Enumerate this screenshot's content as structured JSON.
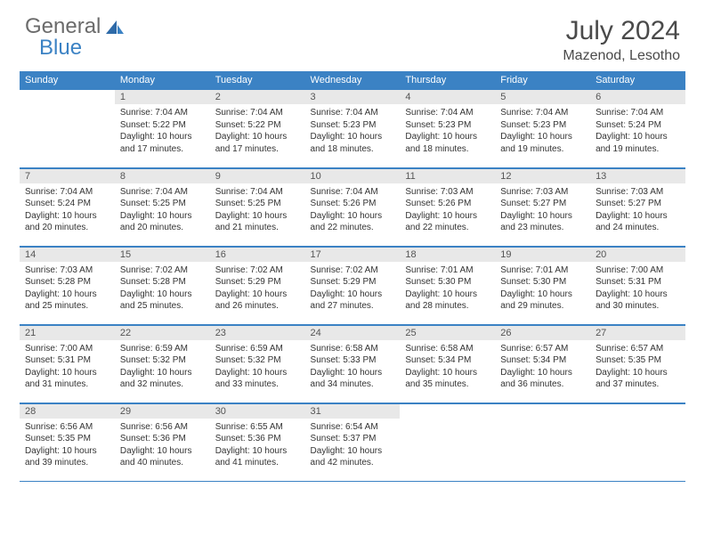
{
  "logo": {
    "general": "General",
    "blue": "Blue"
  },
  "title": "July 2024",
  "location": "Mazenod, Lesotho",
  "colors": {
    "header_bg": "#3b82c4",
    "header_fg": "#ffffff",
    "daynum_bg": "#e8e8e8",
    "rule": "#3b82c4",
    "text": "#333333",
    "logo_gray": "#6b6b6b",
    "logo_blue": "#3b82c4"
  },
  "typography": {
    "title_fontsize": 30,
    "location_fontsize": 16,
    "dayheader_fontsize": 11,
    "daynum_fontsize": 11,
    "body_fontsize": 10
  },
  "day_headers": [
    "Sunday",
    "Monday",
    "Tuesday",
    "Wednesday",
    "Thursday",
    "Friday",
    "Saturday"
  ],
  "weeks": [
    [
      null,
      {
        "n": "1",
        "sr": "Sunrise: 7:04 AM",
        "ss": "Sunset: 5:22 PM",
        "dl": "Daylight: 10 hours and 17 minutes."
      },
      {
        "n": "2",
        "sr": "Sunrise: 7:04 AM",
        "ss": "Sunset: 5:22 PM",
        "dl": "Daylight: 10 hours and 17 minutes."
      },
      {
        "n": "3",
        "sr": "Sunrise: 7:04 AM",
        "ss": "Sunset: 5:23 PM",
        "dl": "Daylight: 10 hours and 18 minutes."
      },
      {
        "n": "4",
        "sr": "Sunrise: 7:04 AM",
        "ss": "Sunset: 5:23 PM",
        "dl": "Daylight: 10 hours and 18 minutes."
      },
      {
        "n": "5",
        "sr": "Sunrise: 7:04 AM",
        "ss": "Sunset: 5:23 PM",
        "dl": "Daylight: 10 hours and 19 minutes."
      },
      {
        "n": "6",
        "sr": "Sunrise: 7:04 AM",
        "ss": "Sunset: 5:24 PM",
        "dl": "Daylight: 10 hours and 19 minutes."
      }
    ],
    [
      {
        "n": "7",
        "sr": "Sunrise: 7:04 AM",
        "ss": "Sunset: 5:24 PM",
        "dl": "Daylight: 10 hours and 20 minutes."
      },
      {
        "n": "8",
        "sr": "Sunrise: 7:04 AM",
        "ss": "Sunset: 5:25 PM",
        "dl": "Daylight: 10 hours and 20 minutes."
      },
      {
        "n": "9",
        "sr": "Sunrise: 7:04 AM",
        "ss": "Sunset: 5:25 PM",
        "dl": "Daylight: 10 hours and 21 minutes."
      },
      {
        "n": "10",
        "sr": "Sunrise: 7:04 AM",
        "ss": "Sunset: 5:26 PM",
        "dl": "Daylight: 10 hours and 22 minutes."
      },
      {
        "n": "11",
        "sr": "Sunrise: 7:03 AM",
        "ss": "Sunset: 5:26 PM",
        "dl": "Daylight: 10 hours and 22 minutes."
      },
      {
        "n": "12",
        "sr": "Sunrise: 7:03 AM",
        "ss": "Sunset: 5:27 PM",
        "dl": "Daylight: 10 hours and 23 minutes."
      },
      {
        "n": "13",
        "sr": "Sunrise: 7:03 AM",
        "ss": "Sunset: 5:27 PM",
        "dl": "Daylight: 10 hours and 24 minutes."
      }
    ],
    [
      {
        "n": "14",
        "sr": "Sunrise: 7:03 AM",
        "ss": "Sunset: 5:28 PM",
        "dl": "Daylight: 10 hours and 25 minutes."
      },
      {
        "n": "15",
        "sr": "Sunrise: 7:02 AM",
        "ss": "Sunset: 5:28 PM",
        "dl": "Daylight: 10 hours and 25 minutes."
      },
      {
        "n": "16",
        "sr": "Sunrise: 7:02 AM",
        "ss": "Sunset: 5:29 PM",
        "dl": "Daylight: 10 hours and 26 minutes."
      },
      {
        "n": "17",
        "sr": "Sunrise: 7:02 AM",
        "ss": "Sunset: 5:29 PM",
        "dl": "Daylight: 10 hours and 27 minutes."
      },
      {
        "n": "18",
        "sr": "Sunrise: 7:01 AM",
        "ss": "Sunset: 5:30 PM",
        "dl": "Daylight: 10 hours and 28 minutes."
      },
      {
        "n": "19",
        "sr": "Sunrise: 7:01 AM",
        "ss": "Sunset: 5:30 PM",
        "dl": "Daylight: 10 hours and 29 minutes."
      },
      {
        "n": "20",
        "sr": "Sunrise: 7:00 AM",
        "ss": "Sunset: 5:31 PM",
        "dl": "Daylight: 10 hours and 30 minutes."
      }
    ],
    [
      {
        "n": "21",
        "sr": "Sunrise: 7:00 AM",
        "ss": "Sunset: 5:31 PM",
        "dl": "Daylight: 10 hours and 31 minutes."
      },
      {
        "n": "22",
        "sr": "Sunrise: 6:59 AM",
        "ss": "Sunset: 5:32 PM",
        "dl": "Daylight: 10 hours and 32 minutes."
      },
      {
        "n": "23",
        "sr": "Sunrise: 6:59 AM",
        "ss": "Sunset: 5:32 PM",
        "dl": "Daylight: 10 hours and 33 minutes."
      },
      {
        "n": "24",
        "sr": "Sunrise: 6:58 AM",
        "ss": "Sunset: 5:33 PM",
        "dl": "Daylight: 10 hours and 34 minutes."
      },
      {
        "n": "25",
        "sr": "Sunrise: 6:58 AM",
        "ss": "Sunset: 5:34 PM",
        "dl": "Daylight: 10 hours and 35 minutes."
      },
      {
        "n": "26",
        "sr": "Sunrise: 6:57 AM",
        "ss": "Sunset: 5:34 PM",
        "dl": "Daylight: 10 hours and 36 minutes."
      },
      {
        "n": "27",
        "sr": "Sunrise: 6:57 AM",
        "ss": "Sunset: 5:35 PM",
        "dl": "Daylight: 10 hours and 37 minutes."
      }
    ],
    [
      {
        "n": "28",
        "sr": "Sunrise: 6:56 AM",
        "ss": "Sunset: 5:35 PM",
        "dl": "Daylight: 10 hours and 39 minutes."
      },
      {
        "n": "29",
        "sr": "Sunrise: 6:56 AM",
        "ss": "Sunset: 5:36 PM",
        "dl": "Daylight: 10 hours and 40 minutes."
      },
      {
        "n": "30",
        "sr": "Sunrise: 6:55 AM",
        "ss": "Sunset: 5:36 PM",
        "dl": "Daylight: 10 hours and 41 minutes."
      },
      {
        "n": "31",
        "sr": "Sunrise: 6:54 AM",
        "ss": "Sunset: 5:37 PM",
        "dl": "Daylight: 10 hours and 42 minutes."
      },
      null,
      null,
      null
    ]
  ]
}
